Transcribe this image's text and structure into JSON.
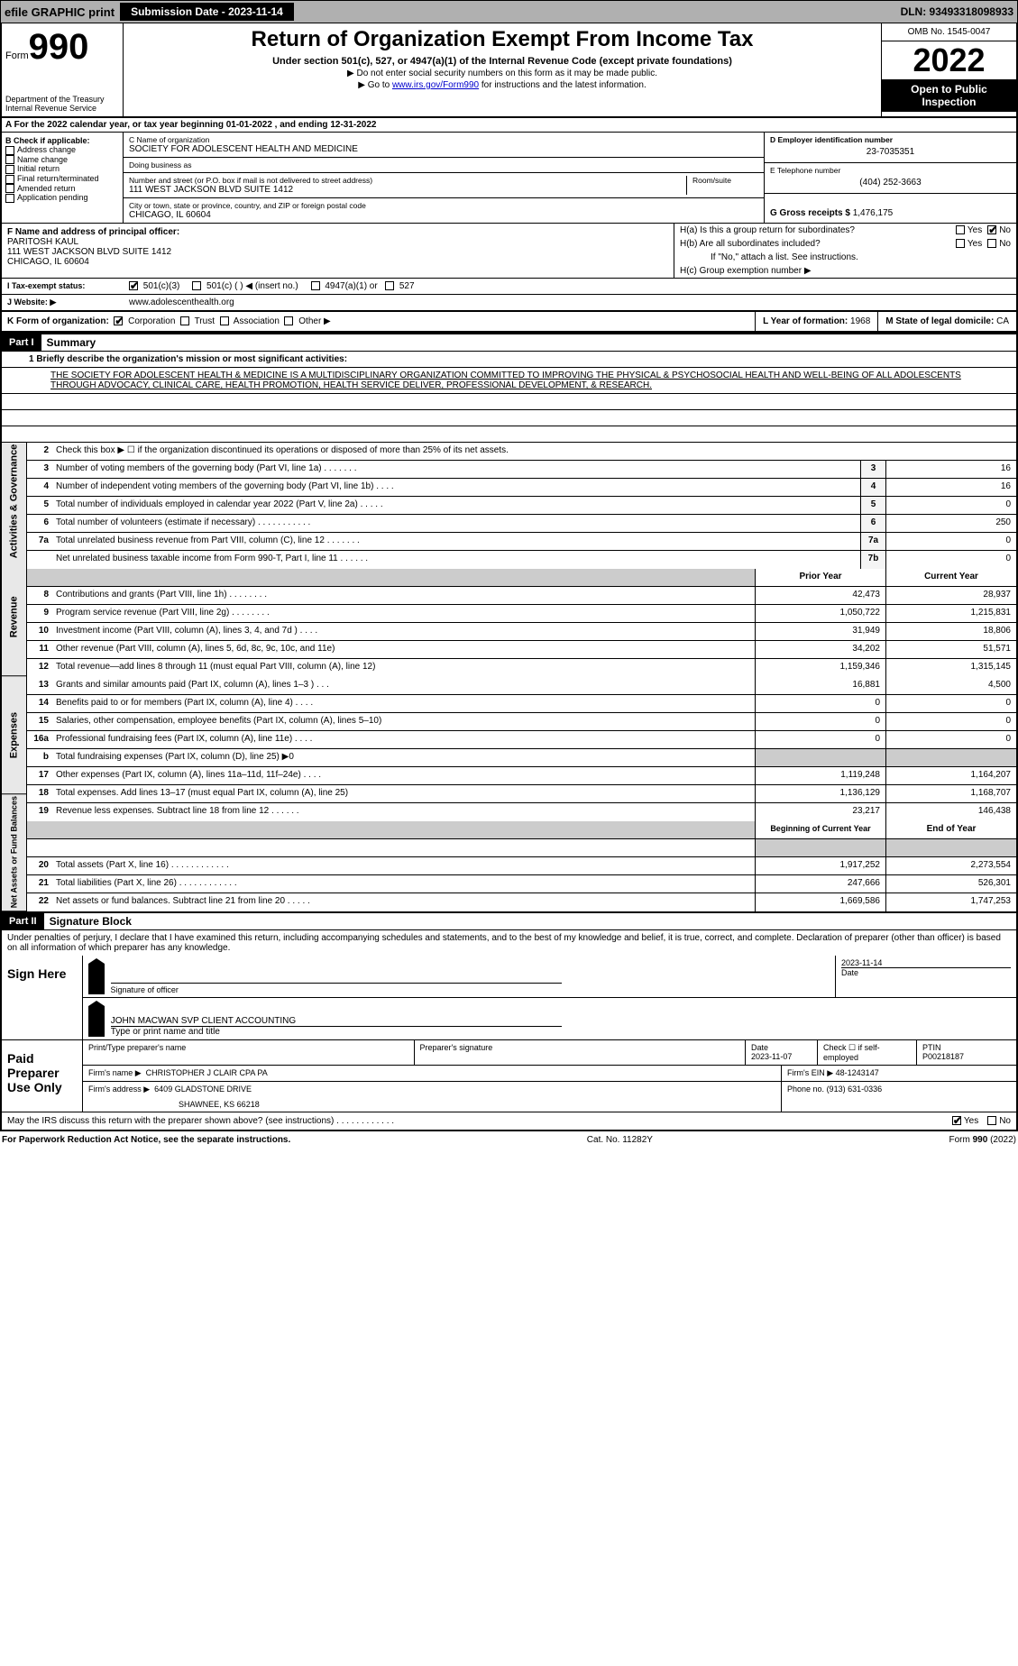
{
  "topbar": {
    "efile": "efile GRAPHIC print",
    "submission": "Submission Date - 2023-11-14",
    "dln": "DLN: 93493318098933"
  },
  "header": {
    "form_prefix": "Form",
    "form_number": "990",
    "title": "Return of Organization Exempt From Income Tax",
    "subtitle": "Under section 501(c), 527, or 4947(a)(1) of the Internal Revenue Code (except private foundations)",
    "note1": "▶ Do not enter social security numbers on this form as it may be made public.",
    "note2_pre": "▶ Go to ",
    "note2_link": "www.irs.gov/Form990",
    "note2_post": " for instructions and the latest information.",
    "dept": "Department of the Treasury\nInternal Revenue Service",
    "omb": "OMB No. 1545-0047",
    "year": "2022",
    "otp": "Open to Public Inspection"
  },
  "rowA": "A For the 2022 calendar year, or tax year beginning 01-01-2022     , and ending 12-31-2022",
  "boxB": {
    "label": "B Check if applicable:",
    "items": [
      "Address change",
      "Name change",
      "Initial return",
      "Final return/terminated",
      "Amended return",
      "Application pending"
    ]
  },
  "boxC": {
    "name_label": "C Name of organization",
    "name": "SOCIETY FOR ADOLESCENT HEALTH AND MEDICINE",
    "dba_label": "Doing business as",
    "dba": "",
    "addr_label": "Number and street (or P.O. box if mail is not delivered to street address)",
    "room_label": "Room/suite",
    "addr": "111 WEST JACKSON BLVD SUITE 1412",
    "city_label": "City or town, state or province, country, and ZIP or foreign postal code",
    "city": "CHICAGO, IL  60604"
  },
  "boxD": {
    "label": "D Employer identification number",
    "ein": "23-7035351",
    "e_label": "E Telephone number",
    "phone": "(404) 252-3663",
    "g_label": "G Gross receipts $",
    "gross": "1,476,175"
  },
  "boxF": {
    "label": "F Name and address of principal officer:",
    "name": "PARITOSH KAUL",
    "addr": "111 WEST JACKSON BLVD SUITE 1412",
    "city": "CHICAGO, IL  60604"
  },
  "boxH": {
    "ha": "H(a)  Is this a group return for subordinates?",
    "hb": "H(b)  Are all subordinates included?",
    "hb_note": "If \"No,\" attach a list. See instructions.",
    "hc": "H(c)  Group exemption number ▶",
    "yes": "Yes",
    "no": "No"
  },
  "statusI": {
    "label": "I  Tax-exempt status:",
    "o1": "501(c)(3)",
    "o2": "501(c) (   ) ◀ (insert no.)",
    "o3": "4947(a)(1) or",
    "o4": "527"
  },
  "boxJ": {
    "label": "J  Website: ▶",
    "url": "www.adolescenthealth.org"
  },
  "boxK": {
    "label": "K Form of organization:",
    "o1": "Corporation",
    "o2": "Trust",
    "o3": "Association",
    "o4": "Other ▶",
    "l_label": "L Year of formation:",
    "l_val": "1968",
    "m_label": "M State of legal domicile:",
    "m_val": "CA"
  },
  "part1": {
    "bar": "Part I",
    "title": "Summary",
    "q1_label": "1  Briefly describe the organization's mission or most significant activities:",
    "mission": "THE SOCIETY FOR ADOLESCENT HEALTH & MEDICINE IS A MULTIDISCIPLINARY ORGANIZATION COMMITTED TO IMPROVING THE PHYSICAL & PSYCHOSOCIAL HEALTH AND WELL-BEING OF ALL ADOLESCENTS THROUGH ADVOCACY, CLINICAL CARE, HEALTH PROMOTION, HEALTH SERVICE DELIVER, PROFESSIONAL DEVELOPMENT, & RESEARCH.",
    "q2": "Check this box ▶ ☐  if the organization discontinued its operations or disposed of more than 25% of its net assets.",
    "side1": "Activities & Governance",
    "side2": "Revenue",
    "side3": "Expenses",
    "side4": "Net Assets or Fund Balances",
    "hdr_prior": "Prior Year",
    "hdr_current": "Current Year",
    "hdr_begin": "Beginning of Current Year",
    "hdr_end": "End of Year",
    "rows_top": [
      {
        "n": "3",
        "d": "Number of voting members of the governing body (Part VI, line 1a)   .    .    .    .    .    .    .",
        "rn": "3",
        "v": "16"
      },
      {
        "n": "4",
        "d": "Number of independent voting members of the governing body (Part VI, line 1b)    .    .    .    .",
        "rn": "4",
        "v": "16"
      },
      {
        "n": "5",
        "d": "Total number of individuals employed in calendar year 2022 (Part V, line 2a)   .    .    .    .    .",
        "rn": "5",
        "v": "0"
      },
      {
        "n": "6",
        "d": "Total number of volunteers (estimate if necessary)    .    .    .    .    .    .    .    .    .    .    .",
        "rn": "6",
        "v": "250"
      },
      {
        "n": "7a",
        "d": "Total unrelated business revenue from Part VIII, column (C), line 12   .    .    .    .    .    .    .",
        "rn": "7a",
        "v": "0"
      },
      {
        "n": "",
        "d": "Net unrelated business taxable income from Form 990-T, Part I, line 11    .    .    .    .    .    .",
        "rn": "7b",
        "v": "0"
      }
    ],
    "rows_rev": [
      {
        "n": "8",
        "d": "Contributions and grants (Part VIII, line 1h)   .    .    .    .    .    .    .    .",
        "p": "42,473",
        "c": "28,937"
      },
      {
        "n": "9",
        "d": "Program service revenue (Part VIII, line 2g)   .    .    .    .    .    .    .    .",
        "p": "1,050,722",
        "c": "1,215,831"
      },
      {
        "n": "10",
        "d": "Investment income (Part VIII, column (A), lines 3, 4, and 7d )   .    .    .    .",
        "p": "31,949",
        "c": "18,806"
      },
      {
        "n": "11",
        "d": "Other revenue (Part VIII, column (A), lines 5, 6d, 8c, 9c, 10c, and 11e)",
        "p": "34,202",
        "c": "51,571"
      },
      {
        "n": "12",
        "d": "Total revenue—add lines 8 through 11 (must equal Part VIII, column (A), line 12)",
        "p": "1,159,346",
        "c": "1,315,145"
      }
    ],
    "rows_exp": [
      {
        "n": "13",
        "d": "Grants and similar amounts paid (Part IX, column (A), lines 1–3 )   .    .    .",
        "p": "16,881",
        "c": "4,500"
      },
      {
        "n": "14",
        "d": "Benefits paid to or for members (Part IX, column (A), line 4)   .    .    .    .",
        "p": "0",
        "c": "0"
      },
      {
        "n": "15",
        "d": "Salaries, other compensation, employee benefits (Part IX, column (A), lines 5–10)",
        "p": "0",
        "c": "0"
      },
      {
        "n": "16a",
        "d": "Professional fundraising fees (Part IX, column (A), line 11e)   .    .    .    .",
        "p": "0",
        "c": "0"
      },
      {
        "n": "b",
        "d": "Total fundraising expenses (Part IX, column (D), line 25) ▶0",
        "p": "",
        "c": "",
        "gray": true
      },
      {
        "n": "17",
        "d": "Other expenses (Part IX, column (A), lines 11a–11d, 11f–24e)    .    .    .    .",
        "p": "1,119,248",
        "c": "1,164,207"
      },
      {
        "n": "18",
        "d": "Total expenses. Add lines 13–17 (must equal Part IX, column (A), line 25)",
        "p": "1,136,129",
        "c": "1,168,707"
      },
      {
        "n": "19",
        "d": "Revenue less expenses. Subtract line 18 from line 12   .    .    .    .    .    .",
        "p": "23,217",
        "c": "146,438"
      }
    ],
    "rows_net": [
      {
        "n": "20",
        "d": "Total assets (Part X, line 16)   .    .    .    .    .    .    .    .    .    .    .    .",
        "p": "1,917,252",
        "c": "2,273,554"
      },
      {
        "n": "21",
        "d": "Total liabilities (Part X, line 26)   .    .    .    .    .    .    .    .    .    .    .    .",
        "p": "247,666",
        "c": "526,301"
      },
      {
        "n": "22",
        "d": "Net assets or fund balances. Subtract line 21 from line 20    .    .    .    .    .",
        "p": "1,669,586",
        "c": "1,747,253"
      }
    ]
  },
  "part2": {
    "bar": "Part II",
    "title": "Signature Block",
    "decl": "Under penalties of perjury, I declare that I have examined this return, including accompanying schedules and statements, and to the best of my knowledge and belief, it is true, correct, and complete. Declaration of preparer (other than officer) is based on all information of which preparer has any knowledge.",
    "sign_here": "Sign Here",
    "sig_officer": "Signature of officer",
    "sig_date": "2023-11-14",
    "date_label": "Date",
    "officer_name": "JOHN MACWAN  SVP CLIENT ACCOUNTING",
    "type_label": "Type or print name and title",
    "paid": "Paid Preparer Use Only",
    "prep_name_label": "Print/Type preparer's name",
    "prep_sig_label": "Preparer's signature",
    "prep_date": "2023-11-07",
    "check_self": "Check ☐ if self-employed",
    "ptin_label": "PTIN",
    "ptin": "P00218187",
    "firm_name_label": "Firm's name    ▶",
    "firm_name": "CHRISTOPHER J CLAIR CPA PA",
    "firm_ein_label": "Firm's EIN ▶",
    "firm_ein": "48-1243147",
    "firm_addr_label": "Firm's address ▶",
    "firm_addr1": "6409 GLADSTONE DRIVE",
    "firm_addr2": "SHAWNEE, KS  66218",
    "phone_label": "Phone no.",
    "phone": "(913) 631-0336",
    "may_irs": "May the IRS discuss this return with the preparer shown above? (see instructions)    .    .    .    .    .    .    .    .    .    .    .    .",
    "yes": "Yes",
    "no": "No"
  },
  "footer": {
    "left": "For Paperwork Reduction Act Notice, see the separate instructions.",
    "mid": "Cat. No. 11282Y",
    "right_pre": "Form ",
    "right_form": "990",
    "right_post": " (2022)"
  },
  "colors": {
    "topbar_bg": "#b0b0b0",
    "link": "#0000cc",
    "gray": "#cccccc"
  }
}
